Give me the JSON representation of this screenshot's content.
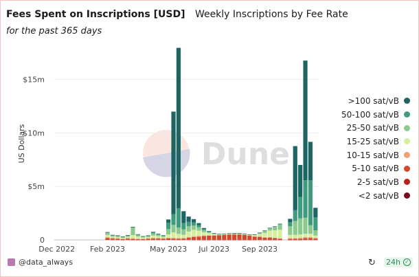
{
  "header": {
    "title": "Fees Spent on Inscriptions [USD]",
    "chart_name": "Weekly Inscriptions by Fee Rate",
    "subtitle": "for the past 365 days"
  },
  "watermark": "Dune",
  "footer": {
    "author": "@data_always",
    "refresh_badge": "24h"
  },
  "colors": {
    "gt100": "#1d6563",
    "r50_100": "#3f9a7e",
    "r25_50": "#8bc98c",
    "r15_25": "#d6ef9c",
    "r10_15": "#f0a070",
    "r5_10": "#d4482a",
    "r2_5": "#b8201c",
    "lt2": "#7a0a20"
  },
  "chart_data": {
    "type": "bar",
    "stacked": true,
    "xlabel": "",
    "ylabel": "US Dollars",
    "ylim": [
      0,
      18000000
    ],
    "yticks": [
      0,
      5000000,
      10000000,
      15000000
    ],
    "ytick_labels": [
      "0",
      "$5m",
      "$10m",
      "$15m"
    ],
    "xtick_labels": [
      "Dec 2022",
      "Feb 2023",
      "May 2023",
      "Jul 2023",
      "Sep 2023"
    ],
    "grid": true,
    "legend_position": "right",
    "categories": [
      "2022-11-28",
      "2022-12-05",
      "2022-12-12",
      "2022-12-19",
      "2022-12-26",
      "2023-01-02",
      "2023-01-09",
      "2023-01-16",
      "2023-01-23",
      "2023-01-30",
      "2023-02-06",
      "2023-02-13",
      "2023-02-20",
      "2023-02-27",
      "2023-03-06",
      "2023-03-13",
      "2023-03-20",
      "2023-03-27",
      "2023-04-03",
      "2023-04-10",
      "2023-04-17",
      "2023-04-24",
      "2023-05-01",
      "2023-05-08",
      "2023-05-15",
      "2023-05-22",
      "2023-05-29",
      "2023-06-05",
      "2023-06-12",
      "2023-06-19",
      "2023-06-26",
      "2023-07-03",
      "2023-07-10",
      "2023-07-17",
      "2023-07-24",
      "2023-07-31",
      "2023-08-07",
      "2023-08-14",
      "2023-08-21",
      "2023-08-28",
      "2023-09-04",
      "2023-09-11",
      "2023-09-18",
      "2023-09-25",
      "2023-10-02",
      "2023-10-09",
      "2023-10-16",
      "2023-10-23",
      "2023-10-30",
      "2023-11-06",
      "2023-11-13",
      "2023-11-20"
    ],
    "series": [
      {
        "name": "<2 sat/vB",
        "color_key": "lt2",
        "values": [
          0,
          0,
          0,
          0,
          0,
          0,
          0,
          0,
          0,
          0,
          0,
          0,
          0,
          0,
          0,
          0,
          0,
          0,
          0,
          0,
          0,
          0,
          0,
          0,
          0,
          0,
          0,
          0,
          0,
          0,
          0,
          0,
          0,
          0,
          0,
          0,
          0,
          0,
          0,
          0,
          0,
          0,
          0,
          0,
          0,
          0,
          0,
          0,
          0,
          0,
          0,
          0
        ]
      },
      {
        "name": "2-5 sat/vB",
        "color_key": "r2_5",
        "values": [
          0,
          0,
          0,
          0,
          0,
          0,
          0,
          0,
          0,
          0,
          30000,
          20000,
          20000,
          10000,
          20000,
          10000,
          10000,
          10000,
          20000,
          20000,
          20000,
          20000,
          30000,
          20000,
          20000,
          20000,
          20000,
          10000,
          10000,
          10000,
          10000,
          10000,
          10000,
          10000,
          10000,
          10000,
          10000,
          10000,
          10000,
          10000,
          20000,
          10000,
          10000,
          10000,
          10000,
          0,
          10000,
          10000,
          10000,
          20000,
          20000,
          20000
        ]
      },
      {
        "name": "5-10 sat/vB",
        "color_key": "r5_10",
        "values": [
          0,
          0,
          0,
          0,
          0,
          0,
          0,
          0,
          0,
          0,
          150000,
          100000,
          80000,
          60000,
          100000,
          80000,
          60000,
          60000,
          80000,
          100000,
          100000,
          80000,
          100000,
          100000,
          80000,
          100000,
          180000,
          250000,
          300000,
          350000,
          380000,
          400000,
          420000,
          450000,
          480000,
          500000,
          500000,
          450000,
          380000,
          300000,
          250000,
          200000,
          200000,
          150000,
          100000,
          0,
          80000,
          100000,
          100000,
          150000,
          150000,
          100000
        ]
      },
      {
        "name": "10-15 sat/vB",
        "color_key": "r10_15",
        "values": [
          0,
          0,
          0,
          0,
          0,
          0,
          0,
          0,
          0,
          0,
          80000,
          80000,
          60000,
          40000,
          60000,
          60000,
          40000,
          40000,
          60000,
          80000,
          80000,
          60000,
          80000,
          80000,
          60000,
          60000,
          80000,
          80000,
          60000,
          50000,
          40000,
          30000,
          30000,
          30000,
          30000,
          30000,
          30000,
          30000,
          30000,
          30000,
          80000,
          40000,
          60000,
          40000,
          40000,
          0,
          80000,
          60000,
          100000,
          100000,
          100000,
          80000
        ]
      },
      {
        "name": "15-25 sat/vB",
        "color_key": "r15_25",
        "values": [
          0,
          0,
          0,
          0,
          0,
          0,
          0,
          0,
          0,
          0,
          200000,
          100000,
          100000,
          80000,
          100000,
          300000,
          200000,
          100000,
          100000,
          200000,
          150000,
          100000,
          300000,
          500000,
          400000,
          300000,
          500000,
          600000,
          500000,
          300000,
          200000,
          100000,
          50000,
          50000,
          50000,
          50000,
          50000,
          50000,
          50000,
          100000,
          200000,
          400000,
          600000,
          700000,
          800000,
          0,
          300000,
          300000,
          300000,
          300000,
          300000,
          200000
        ]
      },
      {
        "name": "25-50 sat/vB",
        "color_key": "r25_50",
        "values": [
          0,
          0,
          0,
          0,
          0,
          0,
          0,
          0,
          0,
          0,
          200000,
          100000,
          100000,
          80000,
          100000,
          700000,
          150000,
          100000,
          100000,
          200000,
          150000,
          100000,
          500000,
          700000,
          600000,
          500000,
          500000,
          400000,
          300000,
          200000,
          100000,
          50000,
          30000,
          30000,
          30000,
          30000,
          30000,
          30000,
          30000,
          50000,
          100000,
          200000,
          200000,
          300000,
          500000,
          0,
          800000,
          1300000,
          1500000,
          1500000,
          800000,
          500000
        ]
      },
      {
        "name": "50-100 sat/vB",
        "color_key": "r50_100",
        "values": [
          0,
          0,
          0,
          0,
          0,
          0,
          0,
          0,
          0,
          0,
          50000,
          50000,
          50000,
          30000,
          50000,
          50000,
          50000,
          30000,
          50000,
          100000,
          50000,
          50000,
          600000,
          1000000,
          1800000,
          600000,
          400000,
          300000,
          200000,
          100000,
          50000,
          20000,
          10000,
          10000,
          10000,
          10000,
          10000,
          10000,
          10000,
          10000,
          20000,
          20000,
          50000,
          50000,
          50000,
          0,
          400000,
          1000000,
          2000000,
          3500000,
          4200000,
          1200000
        ]
      },
      {
        "name": ">100 sat/vB",
        "color_key": "gt100",
        "values": [
          0,
          0,
          0,
          0,
          0,
          0,
          0,
          0,
          0,
          0,
          20000,
          20000,
          20000,
          10000,
          20000,
          20000,
          20000,
          10000,
          20000,
          50000,
          30000,
          30000,
          300000,
          9600000,
          15000000,
          1100000,
          500000,
          300000,
          200000,
          100000,
          50000,
          20000,
          10000,
          10000,
          10000,
          10000,
          10000,
          10000,
          10000,
          10000,
          10000,
          10000,
          10000,
          10000,
          10000,
          0,
          300000,
          6000000,
          3000000,
          11200000,
          3600000,
          900000
        ]
      }
    ]
  }
}
